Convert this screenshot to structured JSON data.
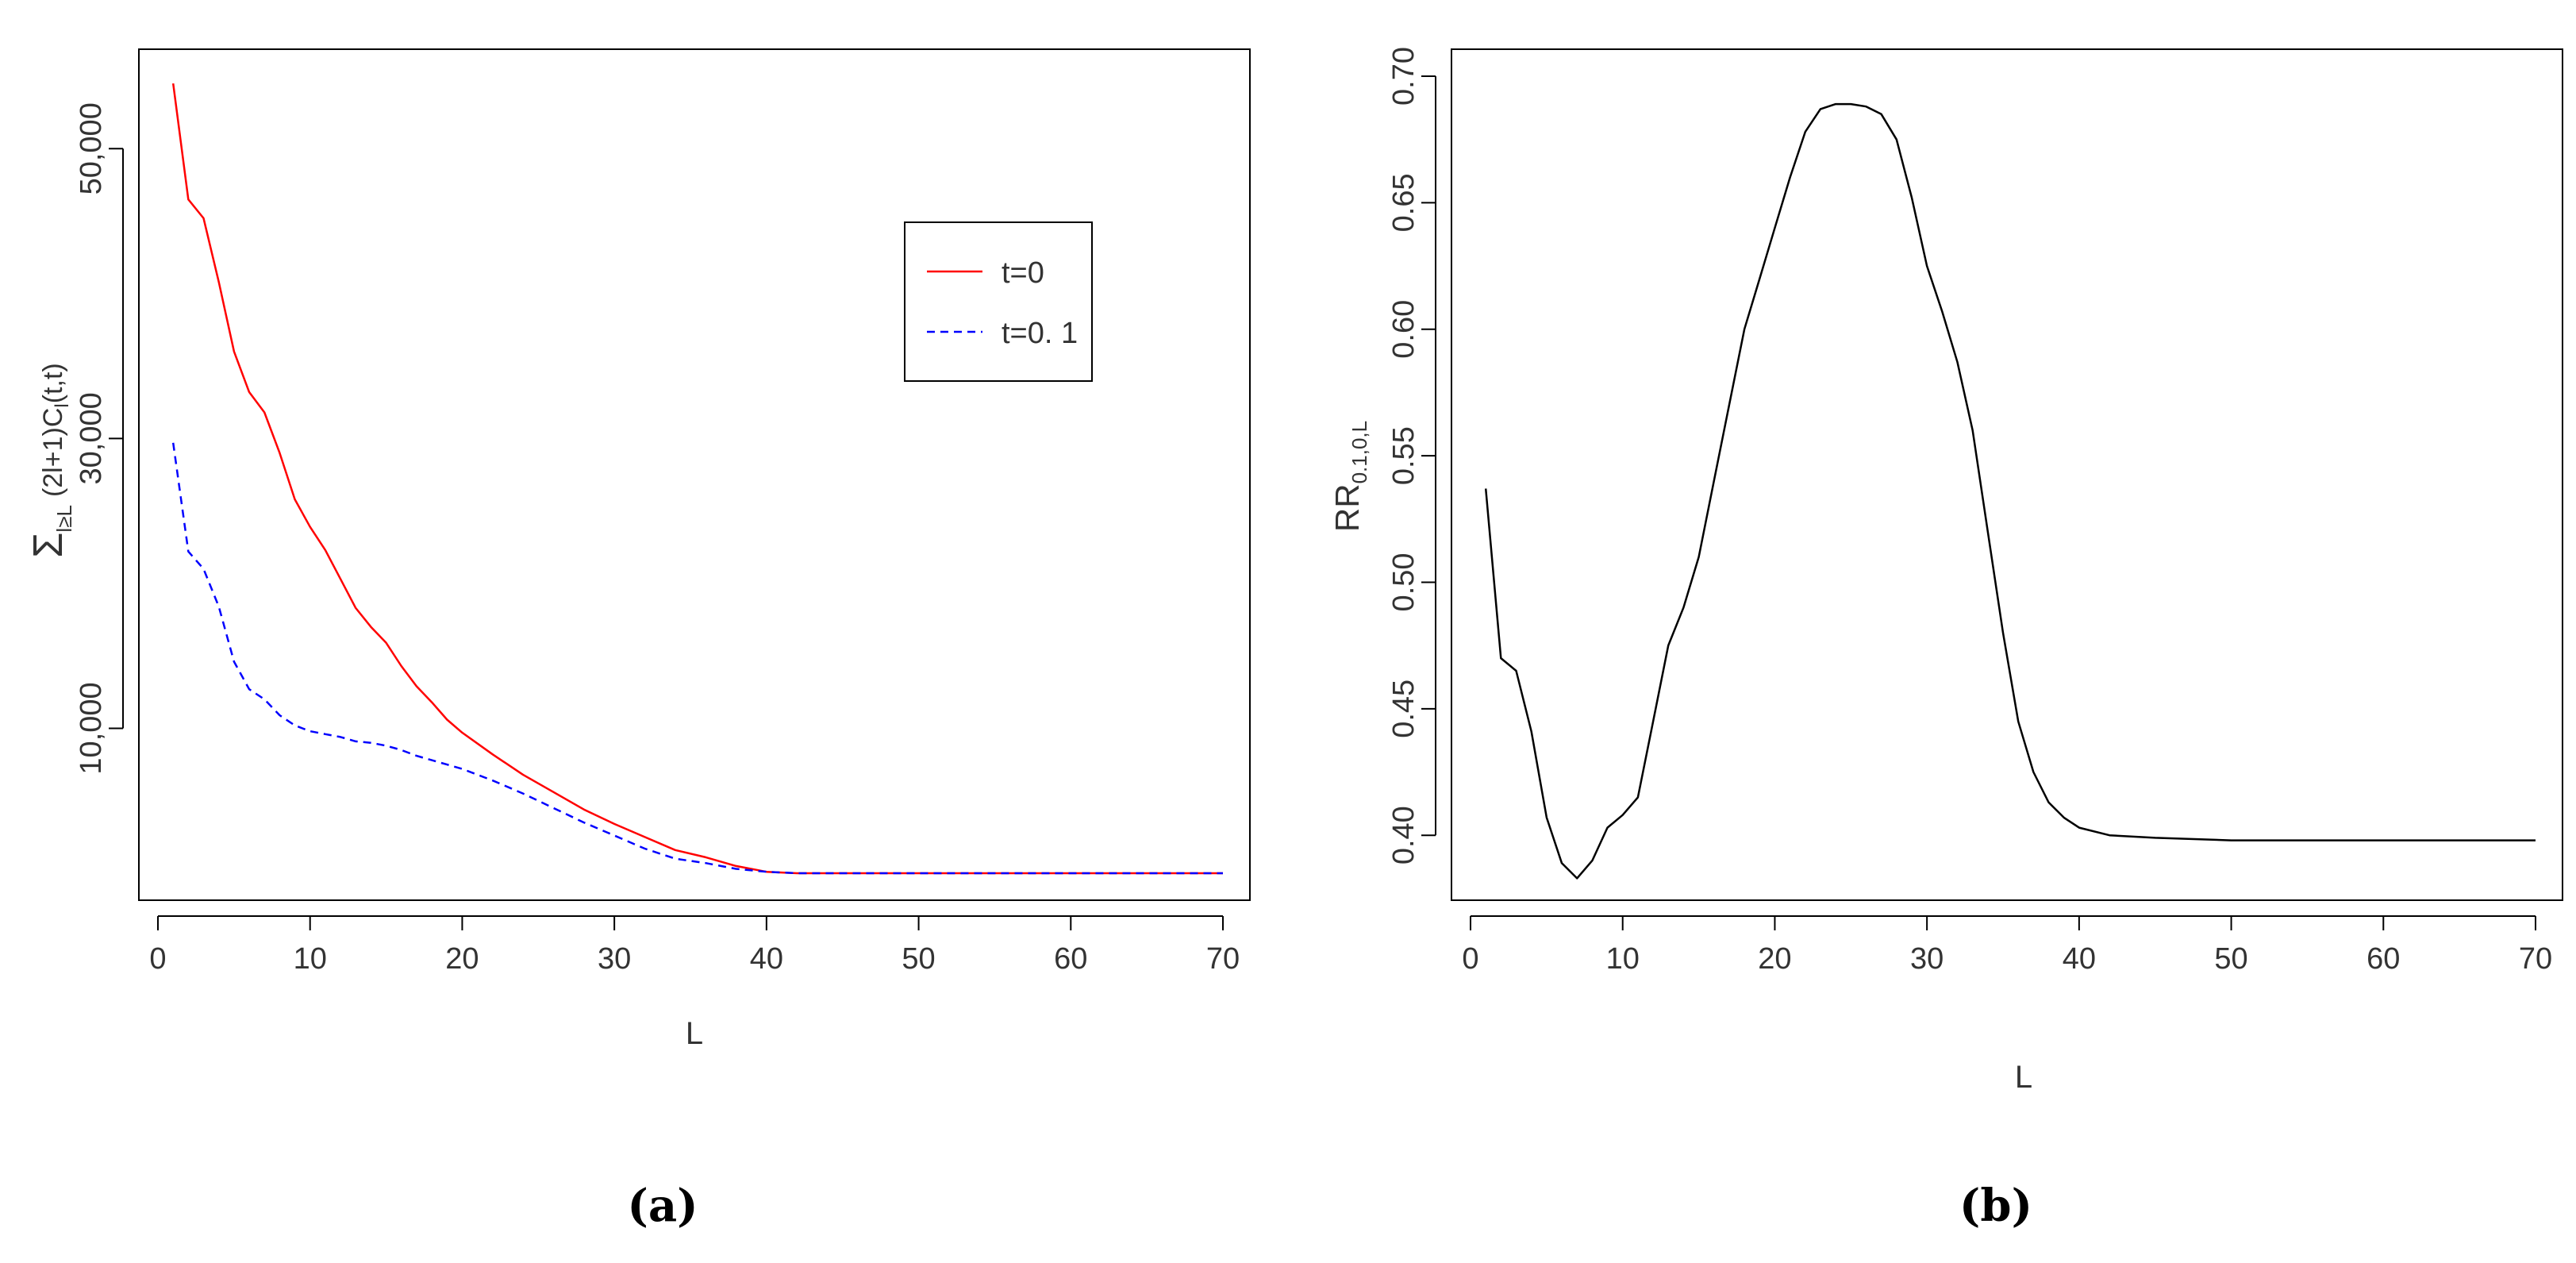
{
  "panels": [
    {
      "caption": "(a)"
    },
    {
      "caption": "(b)"
    }
  ],
  "chart_data": [
    {
      "type": "line",
      "xlabel": "L",
      "ylabel": "Σ l≥L (2l+1)C_l(t,t)",
      "ylabel_parts": {
        "sum": "Σ",
        "sub": "l≥L",
        "body": "(2l+1)C",
        "body_sub": "l",
        "tail": "(t,t)"
      },
      "xlim": [
        0,
        70
      ],
      "ylim": [
        0,
        55000
      ],
      "x_ticks": [
        0,
        10,
        20,
        30,
        40,
        50,
        60,
        70
      ],
      "x_tick_labels": [
        "0",
        "10",
        "20",
        "30",
        "40",
        "50",
        "60",
        "70"
      ],
      "y_ticks": [
        10000,
        30000,
        50000
      ],
      "y_tick_labels": [
        "10,000",
        "30,000",
        "50,000"
      ],
      "legend": {
        "placement": "top-right",
        "entries": [
          "t=0",
          "t=0. 1"
        ]
      },
      "series": [
        {
          "name": "t=0",
          "color": "#ff0000",
          "dash": "solid",
          "x": [
            1,
            2,
            3,
            4,
            5,
            6,
            7,
            8,
            9,
            10,
            11,
            12,
            13,
            14,
            15,
            16,
            17,
            18,
            19,
            20,
            22,
            24,
            26,
            28,
            30,
            32,
            34,
            36,
            38,
            40,
            42,
            45,
            50,
            55,
            60,
            65,
            70
          ],
          "y": [
            54500,
            46500,
            45200,
            40800,
            36000,
            33200,
            31800,
            29000,
            25800,
            23900,
            22300,
            20300,
            18300,
            17000,
            15900,
            14300,
            12900,
            11800,
            10600,
            9700,
            8200,
            6800,
            5600,
            4400,
            3400,
            2500,
            1600,
            1100,
            500,
            100,
            0,
            0,
            0,
            0,
            0,
            0,
            0
          ]
        },
        {
          "name": "t=0. 1",
          "color": "#0000ff",
          "dash": "dashed",
          "x": [
            1,
            2,
            3,
            4,
            5,
            6,
            7,
            8,
            9,
            10,
            11,
            12,
            13,
            14,
            15,
            16,
            17,
            18,
            19,
            20,
            22,
            24,
            26,
            28,
            30,
            32,
            34,
            36,
            38,
            40,
            42,
            45,
            50,
            55,
            60,
            65,
            70
          ],
          "y": [
            29700,
            22200,
            21000,
            18400,
            14600,
            12700,
            12000,
            10900,
            10200,
            9800,
            9600,
            9400,
            9100,
            9000,
            8800,
            8500,
            8100,
            7800,
            7500,
            7200,
            6400,
            5500,
            4500,
            3500,
            2600,
            1700,
            1000,
            700,
            300,
            100,
            0,
            0,
            0,
            0,
            0,
            0,
            0
          ]
        }
      ]
    },
    {
      "type": "line",
      "xlabel": "L",
      "ylabel": "RR0.1,0,L",
      "ylabel_parts": {
        "main": "RR",
        "sub": "0.1,0,L"
      },
      "xlim": [
        0,
        70
      ],
      "ylim": [
        0.385,
        0.7
      ],
      "x_ticks": [
        0,
        10,
        20,
        30,
        40,
        50,
        60,
        70
      ],
      "x_tick_labels": [
        "0",
        "10",
        "20",
        "30",
        "40",
        "50",
        "60",
        "70"
      ],
      "y_ticks": [
        0.4,
        0.45,
        0.5,
        0.55,
        0.6,
        0.65,
        0.7
      ],
      "y_tick_labels": [
        "0.40",
        "0.45",
        "0.50",
        "0.55",
        "0.60",
        "0.65",
        "0.70"
      ],
      "series": [
        {
          "color": "#000000",
          "dash": "solid",
          "x": [
            1,
            2,
            3,
            4,
            5,
            6,
            7,
            8,
            9,
            10,
            11,
            12,
            13,
            14,
            15,
            16,
            17,
            18,
            19,
            20,
            21,
            22,
            23,
            24,
            25,
            26,
            27,
            28,
            29,
            30,
            31,
            32,
            33,
            34,
            35,
            36,
            37,
            38,
            39,
            40,
            42,
            45,
            50,
            55,
            60,
            65,
            70
          ],
          "y": [
            0.537,
            0.47,
            0.465,
            0.441,
            0.407,
            0.389,
            0.383,
            0.39,
            0.403,
            0.408,
            0.415,
            0.445,
            0.475,
            0.49,
            0.51,
            0.54,
            0.57,
            0.6,
            0.62,
            0.64,
            0.66,
            0.678,
            0.687,
            0.689,
            0.689,
            0.688,
            0.685,
            0.675,
            0.652,
            0.625,
            0.607,
            0.587,
            0.56,
            0.52,
            0.48,
            0.445,
            0.425,
            0.413,
            0.407,
            0.403,
            0.4,
            0.399,
            0.398,
            0.398,
            0.398,
            0.398,
            0.398
          ]
        }
      ]
    }
  ]
}
